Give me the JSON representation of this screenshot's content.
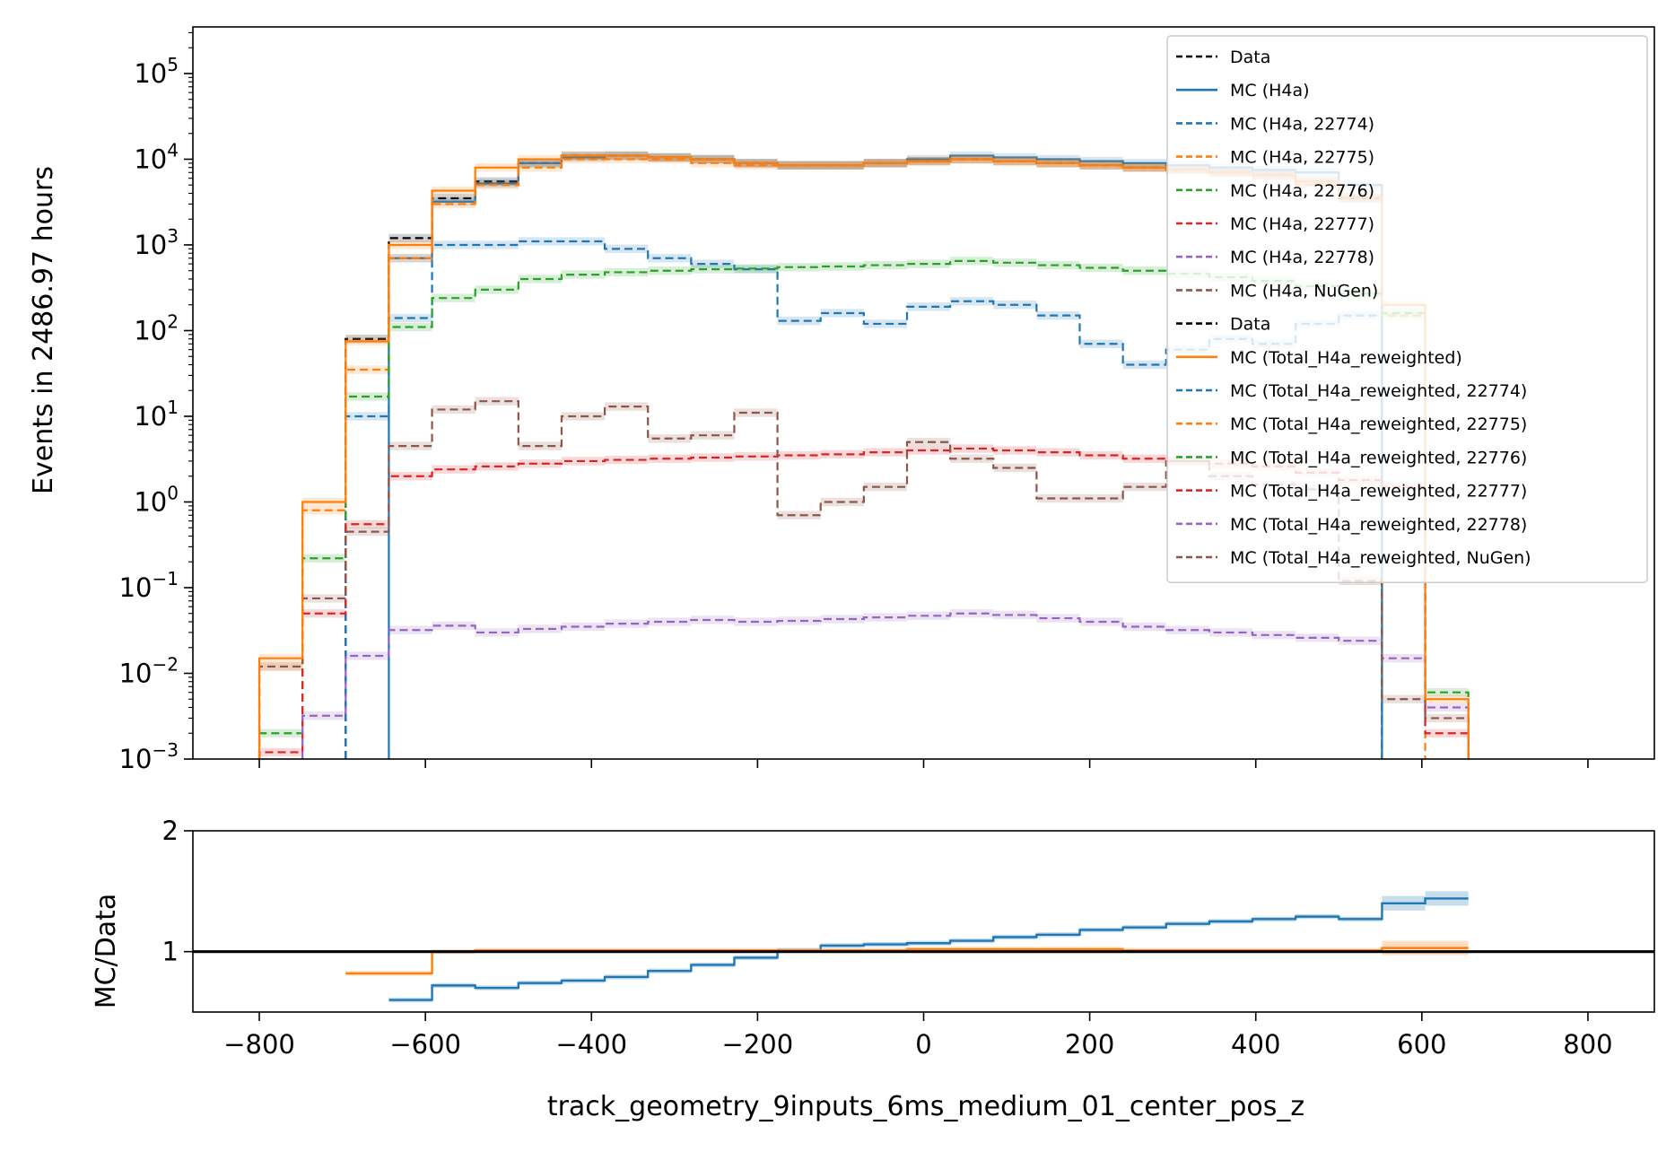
{
  "chart_data": [
    {
      "type": "line",
      "subtype": "step-histogram",
      "title": "",
      "xlabel": "track_geometry_9inputs_6ms_medium_01_center_pos_z",
      "ylabel": "Events in 2486.97 hours",
      "yscale": "log",
      "xlim": [
        -880,
        880
      ],
      "ylim": [
        0.001,
        350000
      ],
      "xticks": [
        -800,
        -600,
        -400,
        -200,
        0,
        200,
        400,
        600,
        800
      ],
      "xtick_labels": [
        "−800",
        "−600",
        "−400",
        "−200",
        "0",
        "200",
        "400",
        "600",
        "800"
      ],
      "yticks": [
        {
          "base": "10",
          "exp": "−3",
          "value": 0.001
        },
        {
          "base": "10",
          "exp": "−2",
          "value": 0.01
        },
        {
          "base": "10",
          "exp": "−1",
          "value": 0.1
        },
        {
          "base": "10",
          "exp": "0",
          "value": 1
        },
        {
          "base": "10",
          "exp": "1",
          "value": 10
        },
        {
          "base": "10",
          "exp": "2",
          "value": 100
        },
        {
          "base": "10",
          "exp": "3",
          "value": 1000
        },
        {
          "base": "10",
          "exp": "4",
          "value": 10000
        },
        {
          "base": "10",
          "exp": "5",
          "value": 100000
        }
      ],
      "legend_position": "top-right",
      "bin_edges": [
        -800,
        -748,
        -696,
        -644,
        -592,
        -540,
        -488,
        -436,
        -384,
        -332,
        -280,
        -228,
        -176,
        -124,
        -72,
        -20,
        32,
        84,
        136,
        188,
        240,
        292,
        344,
        396,
        448,
        500,
        552,
        604,
        656,
        708
      ],
      "series": [
        {
          "name": "Data",
          "color": "#000000",
          "dash": "dashed",
          "values": [
            null,
            null,
            80,
            1200,
            3500,
            5500,
            9000,
            11000,
            11000,
            10500,
            10000,
            9000,
            8500,
            8500,
            9000,
            9500,
            10000,
            9500,
            9000,
            8500,
            8000,
            7500,
            7000,
            6500,
            5500,
            3500,
            null,
            null,
            null
          ]
        },
        {
          "name": "MC (H4a)",
          "color": "#1f77b4",
          "dash": "solid",
          "values": [
            null,
            null,
            null,
            700,
            3200,
            5200,
            9000,
            10500,
            11000,
            10500,
            10000,
            9000,
            8500,
            8500,
            9000,
            10000,
            11000,
            10500,
            10000,
            9500,
            9000,
            8500,
            8000,
            7500,
            7000,
            5000,
            null,
            null,
            null
          ]
        },
        {
          "name": "MC (H4a, 22774)",
          "color": "#1f77b4",
          "dash": "dashed",
          "values": [
            null,
            null,
            10,
            140,
            1000,
            1000,
            1100,
            1100,
            900,
            700,
            600,
            520,
            130,
            160,
            120,
            190,
            220,
            200,
            150,
            70,
            40,
            60,
            80,
            70,
            120,
            150,
            null,
            null,
            null
          ]
        },
        {
          "name": "MC (H4a, 22775)",
          "color": "#ff7f0e",
          "dash": "dashed",
          "values": [
            0.012,
            0.8,
            35,
            700,
            3000,
            5000,
            8000,
            10000,
            10000,
            10000,
            9000,
            8500,
            8500,
            8500,
            9000,
            9500,
            10000,
            9500,
            9000,
            8500,
            8000,
            7500,
            7000,
            6500,
            5000,
            3500,
            150,
            null,
            null
          ]
        },
        {
          "name": "MC (H4a, 22776)",
          "color": "#2ca02c",
          "dash": "dashed",
          "values": [
            0.002,
            0.22,
            17,
            110,
            240,
            300,
            400,
            450,
            480,
            500,
            520,
            530,
            550,
            560,
            580,
            600,
            650,
            620,
            580,
            540,
            500,
            460,
            420,
            380,
            330,
            270,
            160,
            0.006,
            null
          ]
        },
        {
          "name": "MC (H4a, 22777)",
          "color": "#d62728",
          "dash": "dashed",
          "values": [
            0.0012,
            0.05,
            0.55,
            2.0,
            2.4,
            2.6,
            2.8,
            3.0,
            3.1,
            3.2,
            3.3,
            3.4,
            3.5,
            3.6,
            3.8,
            4.0,
            4.2,
            4.0,
            3.8,
            3.5,
            3.2,
            3.0,
            2.8,
            2.6,
            2.2,
            1.8,
            1.5,
            0.002,
            null
          ]
        },
        {
          "name": "MC (H4a, 22778)",
          "color": "#9467bd",
          "dash": "dashed",
          "values": [
            null,
            0.0032,
            0.016,
            0.032,
            0.036,
            0.03,
            0.033,
            0.035,
            0.038,
            0.04,
            0.042,
            0.04,
            0.041,
            0.043,
            0.045,
            0.047,
            0.05,
            0.048,
            0.044,
            0.04,
            0.035,
            0.032,
            0.03,
            0.028,
            0.026,
            0.024,
            0.015,
            0.004,
            null
          ]
        },
        {
          "name": "MC (H4a, NuGen)",
          "color": "#8c564b",
          "dash": "dashed",
          "values": [
            0.012,
            0.075,
            0.45,
            4.5,
            12,
            15,
            4.5,
            10,
            13,
            5.5,
            6,
            11,
            0.7,
            1.0,
            1.5,
            5,
            3.2,
            2.5,
            1.1,
            1.1,
            1.5,
            3,
            2,
            1.6,
            1.4,
            0.12,
            0.005,
            0.003,
            null
          ]
        },
        {
          "name": "Data",
          "color": "#000000",
          "dash": "dashed",
          "values": []
        },
        {
          "name": "MC (Total_H4a_reweighted)",
          "color": "#ff7f0e",
          "dash": "solid",
          "values": [
            0.015,
            1.0,
            75,
            1000,
            4300,
            8000,
            10000,
            11000,
            11000,
            10500,
            10000,
            9000,
            8500,
            8500,
            9000,
            9500,
            10000,
            9500,
            9000,
            8500,
            8000,
            7500,
            7000,
            6500,
            5500,
            3600,
            200,
            0.005,
            null
          ]
        },
        {
          "name": "MC (Total_H4a_reweighted, 22774)",
          "color": "#1f77b4",
          "dash": "dashed",
          "values": []
        },
        {
          "name": "MC (Total_H4a_reweighted, 22775)",
          "color": "#ff7f0e",
          "dash": "dashed",
          "values": []
        },
        {
          "name": "MC (Total_H4a_reweighted, 22776)",
          "color": "#2ca02c",
          "dash": "dashed",
          "values": []
        },
        {
          "name": "MC (Total_H4a_reweighted, 22777)",
          "color": "#d62728",
          "dash": "dashed",
          "values": []
        },
        {
          "name": "MC (Total_H4a_reweighted, 22778)",
          "color": "#9467bd",
          "dash": "dashed",
          "values": []
        },
        {
          "name": "MC (Total_H4a_reweighted, NuGen)",
          "color": "#8c564b",
          "dash": "dashed",
          "values": []
        }
      ]
    },
    {
      "type": "line",
      "subtype": "step-ratio",
      "xlabel": "track_geometry_9inputs_6ms_medium_01_center_pos_z",
      "ylabel": "MC/Data",
      "xlim": [
        -880,
        880
      ],
      "ylim": [
        0.5,
        2
      ],
      "yticks": [
        1,
        2
      ],
      "ytick_labels": [
        "1",
        "2"
      ],
      "reference_line": 1,
      "bin_edges": [
        -696,
        -644,
        -592,
        -540,
        -488,
        -436,
        -384,
        -332,
        -280,
        -228,
        -176,
        -124,
        -72,
        -20,
        32,
        84,
        136,
        188,
        240,
        292,
        344,
        396,
        448,
        500,
        552,
        604,
        656
      ],
      "series": [
        {
          "color": "#1f77b4",
          "values": [
            null,
            0.6,
            0.72,
            0.7,
            0.74,
            0.76,
            0.79,
            0.84,
            0.89,
            0.95,
            1.01,
            1.05,
            1.06,
            1.07,
            1.09,
            1.12,
            1.14,
            1.18,
            1.2,
            1.23,
            1.25,
            1.27,
            1.29,
            1.27,
            1.4,
            1.44
          ]
        },
        {
          "color": "#ff7f0e",
          "values": [
            0.82,
            0.82,
            1.0,
            1.01,
            1.01,
            1.01,
            1.01,
            1.01,
            1.01,
            1.01,
            1.01,
            1.01,
            1.01,
            1.02,
            1.02,
            1.02,
            1.02,
            1.02,
            1.01,
            1.01,
            1.01,
            1.01,
            1.01,
            1.01,
            1.03,
            1.03
          ]
        }
      ]
    }
  ]
}
